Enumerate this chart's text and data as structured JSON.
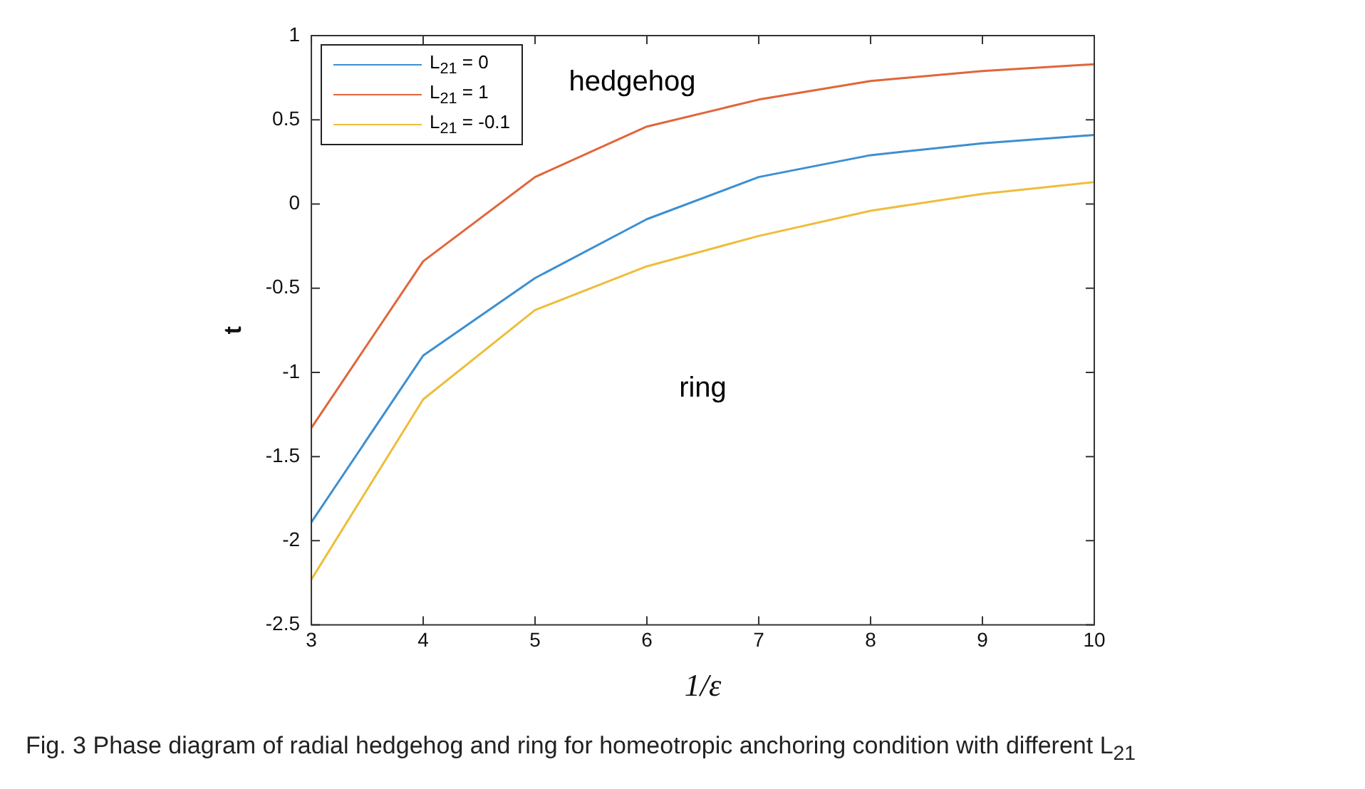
{
  "chart_data": {
    "type": "line",
    "xlabel": "1/ε",
    "ylabel": "t",
    "x": [
      3,
      4,
      5,
      6,
      7,
      8,
      9,
      10
    ],
    "series": [
      {
        "name": "L$_{21}$ = 0",
        "color": "#3d8fd1",
        "values": [
          -1.89,
          -0.9,
          -0.44,
          -0.09,
          0.16,
          0.29,
          0.36,
          0.41
        ]
      },
      {
        "name": "L$_{21}$ = 1",
        "color": "#e0663a",
        "values": [
          -1.33,
          -0.34,
          0.16,
          0.46,
          0.62,
          0.73,
          0.79,
          0.83
        ]
      },
      {
        "name": "L$_{21}$ = -0.1",
        "color": "#eebd3a",
        "values": [
          -2.23,
          -1.16,
          -0.63,
          -0.37,
          -0.19,
          -0.04,
          0.06,
          0.13
        ]
      }
    ],
    "xlim": [
      3,
      10
    ],
    "ylim": [
      -2.5,
      1
    ],
    "xticks": [
      3,
      4,
      5,
      6,
      7,
      8,
      9,
      10
    ],
    "yticks": [
      -2.5,
      -2,
      -1.5,
      -1,
      -0.5,
      0,
      0.5,
      1
    ],
    "legend": "top left",
    "grid": false,
    "marker": "none",
    "line_style": "solid",
    "annotations": [
      "hedgehog",
      "ring",
      "Fig. 3 Phase diagram of radial hedgehog and ring for homeotropic anchoring condition with different L$_{21}$"
    ]
  }
}
